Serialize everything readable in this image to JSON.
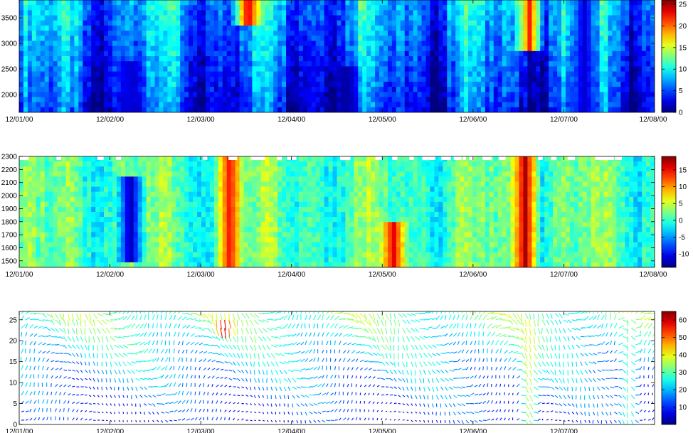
{
  "chart_data": [
    {
      "type": "heatmap",
      "title": "",
      "xlabel": "",
      "ylabel": "",
      "x_ticks": [
        "12/01/00",
        "12/02/00",
        "12/03/00",
        "12/04/00",
        "12/05/00",
        "12/06/00",
        "12/07/00",
        "12/08/00"
      ],
      "ylim": [
        1650,
        3850
      ],
      "y_ticks": [
        2000,
        2500,
        3000,
        3500
      ],
      "colorbar": {
        "min": 0,
        "max": 26,
        "ticks": [
          0,
          5,
          10,
          15,
          20,
          25
        ],
        "colormap": "jet"
      },
      "features": [
        {
          "day": 2.5,
          "y_range": [
            3400,
            3850
          ],
          "value": 24
        },
        {
          "day": 5.6,
          "y_range": [
            2900,
            3850
          ],
          "value": 22
        },
        {
          "day": 1.2,
          "y_range": [
            1650,
            2600
          ],
          "value": 2
        },
        {
          "day": 3.6,
          "y_range": [
            1650,
            2500
          ],
          "value": 1
        },
        {
          "day": 6.2,
          "y_range": [
            1650,
            3850
          ],
          "value": 2
        }
      ]
    },
    {
      "type": "heatmap",
      "title": "",
      "xlabel": "",
      "ylabel": "",
      "x_ticks": [
        "12/01/00",
        "12/02/00",
        "12/03/00",
        "12/04/00",
        "12/05/00",
        "12/06/00",
        "12/07/00",
        "12/08/00"
      ],
      "ylim": [
        1450,
        2300
      ],
      "y_ticks": [
        1500,
        1600,
        1700,
        1800,
        1900,
        2000,
        2100,
        2200,
        2300
      ],
      "colorbar": {
        "min": -14,
        "max": 19,
        "ticks": [
          -10,
          -5,
          0,
          5,
          10,
          15
        ],
        "colormap": "jet"
      },
      "features": [
        {
          "day": 1.2,
          "y_range": [
            1500,
            2150
          ],
          "value": -13
        },
        {
          "day": 2.3,
          "y_range": [
            1450,
            2300
          ],
          "value": 15
        },
        {
          "day": 4.1,
          "y_range": [
            1450,
            1800
          ],
          "value": 16
        },
        {
          "day": 5.55,
          "y_range": [
            1450,
            2300
          ],
          "value": 18
        }
      ]
    },
    {
      "type": "quiver",
      "title": "",
      "xlabel": "",
      "ylabel": "",
      "x_ticks": [
        "12/01/00",
        "12/02/00",
        "12/03/00",
        "12/04/00",
        "12/05/00",
        "12/06/00",
        "12/07/00"
      ],
      "ylim": [
        0,
        27
      ],
      "y_ticks": [
        0,
        5,
        10,
        15,
        20,
        25
      ],
      "colorbar": {
        "min": 0,
        "max": 65,
        "ticks": [
          10,
          20,
          30,
          40,
          50,
          60
        ],
        "colormap": "jet"
      },
      "depth_levels": [
        1,
        3,
        5,
        7,
        9,
        11,
        13,
        15,
        17,
        19,
        21,
        23,
        25,
        26.5
      ],
      "features": [
        {
          "day": 2.25,
          "levels": [
            23,
            26
          ],
          "speed": 62
        },
        {
          "day": 5.6,
          "levels": [
            1,
            26
          ],
          "speed": 40
        },
        {
          "day": 6.7,
          "levels": [
            1,
            26
          ],
          "speed": 30
        }
      ]
    }
  ]
}
